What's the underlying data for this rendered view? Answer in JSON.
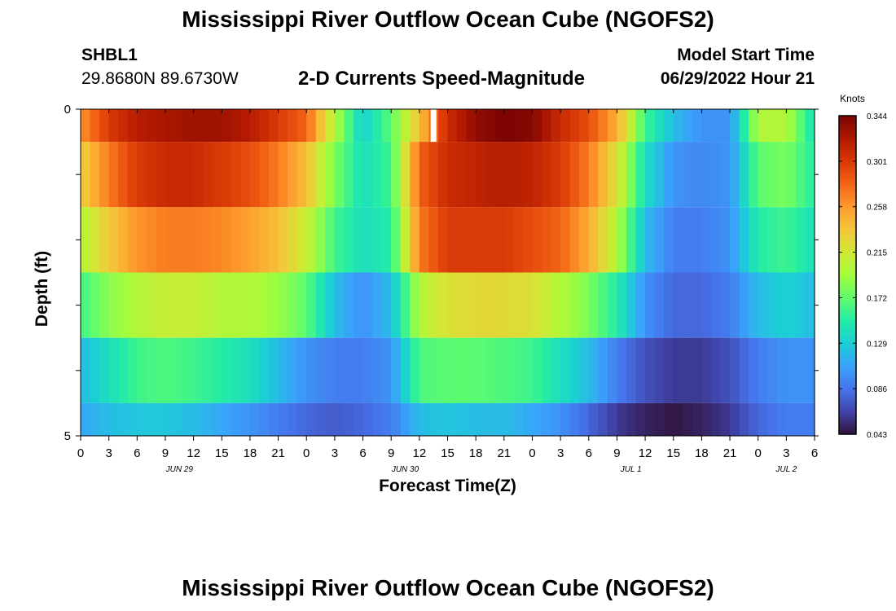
{
  "header": {
    "title": "Mississippi River Outflow Ocean Cube (NGOFS2)",
    "station_name": "SHBL1",
    "station_coords": "29.8680N  89.6730W",
    "subtitle": "2-D Currents Speed-Magnitude",
    "model_start_label": "Model Start Time",
    "model_start_value": "06/29/2022 Hour 21"
  },
  "footer": {
    "title": "Mississippi River Outflow Ocean Cube (NGOFS2)"
  },
  "chart_data": {
    "type": "heatmap",
    "title": "2-D Currents Speed-Magnitude",
    "xlabel": "Forecast Time(Z)",
    "ylabel": "Depth (ft)",
    "colorbar_label": "Knots",
    "colorbar_ticks": [
      "0.344",
      "0.301",
      "0.258",
      "0.215",
      "0.172",
      "0.129",
      "0.086",
      "0.043"
    ],
    "color_range": [
      0.043,
      0.344
    ],
    "colormap": [
      "#30123b",
      "#4145ab",
      "#4675ed",
      "#39a2fc",
      "#1bcfd4",
      "#24eca6",
      "#61fc6c",
      "#a4fc3b",
      "#d1e834",
      "#f3c63a",
      "#fe9b2d",
      "#f36315",
      "#d93806",
      "#b11901",
      "#7a0402"
    ],
    "x_tick_labels": [
      "0",
      "3",
      "6",
      "9",
      "12",
      "15",
      "18",
      "21",
      "0",
      "3",
      "6",
      "9",
      "12",
      "15",
      "18",
      "21",
      "0",
      "3",
      "6",
      "9",
      "12",
      "15",
      "18",
      "21",
      "0",
      "3",
      "6"
    ],
    "date_labels": [
      "JUN 29",
      "JUN 30",
      "JUL 1",
      "JUL 2"
    ],
    "y_tick_labels": [
      "0",
      "5"
    ],
    "xlim": [
      0,
      78
    ],
    "ylim": [
      5,
      0
    ],
    "grid": false,
    "legend_position": "right",
    "layers": [
      {
        "depth_top": 0.0,
        "depth_bottom": 0.5,
        "speed": [
          0.26,
          0.3,
          0.32,
          0.325,
          0.33,
          0.33,
          0.32,
          0.3,
          0.28,
          0.2,
          0.13,
          0.17,
          0.24,
          0.31,
          0.335,
          0.344,
          0.34,
          0.31,
          0.29,
          0.25,
          0.16,
          0.12,
          0.1,
          0.1,
          0.2,
          0.2,
          0.14
        ]
      },
      {
        "depth_top": 0.5,
        "depth_bottom": 1.5,
        "speed": [
          0.23,
          0.27,
          0.3,
          0.31,
          0.31,
          0.3,
          0.29,
          0.27,
          0.24,
          0.18,
          0.14,
          0.16,
          0.28,
          0.31,
          0.315,
          0.32,
          0.315,
          0.3,
          0.27,
          0.22,
          0.14,
          0.1,
          0.095,
          0.1,
          0.17,
          0.18,
          0.15
        ]
      },
      {
        "depth_top": 1.5,
        "depth_bottom": 2.5,
        "speed": [
          0.2,
          0.235,
          0.26,
          0.27,
          0.27,
          0.265,
          0.255,
          0.24,
          0.21,
          0.16,
          0.14,
          0.15,
          0.27,
          0.3,
          0.3,
          0.3,
          0.29,
          0.28,
          0.25,
          0.2,
          0.12,
          0.09,
          0.09,
          0.1,
          0.15,
          0.16,
          0.14
        ]
      },
      {
        "depth_top": 2.5,
        "depth_bottom": 3.5,
        "speed": [
          0.16,
          0.185,
          0.2,
          0.21,
          0.21,
          0.2,
          0.2,
          0.19,
          0.17,
          0.12,
          0.1,
          0.12,
          0.2,
          0.22,
          0.225,
          0.225,
          0.22,
          0.2,
          0.18,
          0.15,
          0.1,
          0.08,
          0.08,
          0.09,
          0.12,
          0.13,
          0.12
        ]
      },
      {
        "depth_top": 3.5,
        "depth_bottom": 4.5,
        "speed": [
          0.12,
          0.14,
          0.16,
          0.165,
          0.16,
          0.15,
          0.14,
          0.12,
          0.1,
          0.09,
          0.09,
          0.1,
          0.165,
          0.17,
          0.17,
          0.165,
          0.16,
          0.14,
          0.12,
          0.09,
          0.07,
          0.06,
          0.06,
          0.07,
          0.09,
          0.1,
          0.1
        ]
      },
      {
        "depth_top": 4.5,
        "depth_bottom": 5.0,
        "speed": [
          0.11,
          0.12,
          0.125,
          0.125,
          0.12,
          0.11,
          0.1,
          0.09,
          0.08,
          0.075,
          0.08,
          0.09,
          0.12,
          0.125,
          0.12,
          0.12,
          0.11,
          0.1,
          0.08,
          0.06,
          0.05,
          0.045,
          0.05,
          0.06,
          0.08,
          0.09,
          0.09
        ]
      }
    ],
    "missing_value_marker": {
      "forecast_hour": 37.5,
      "depth_top": 0.0,
      "depth_bottom": 0.5
    }
  }
}
